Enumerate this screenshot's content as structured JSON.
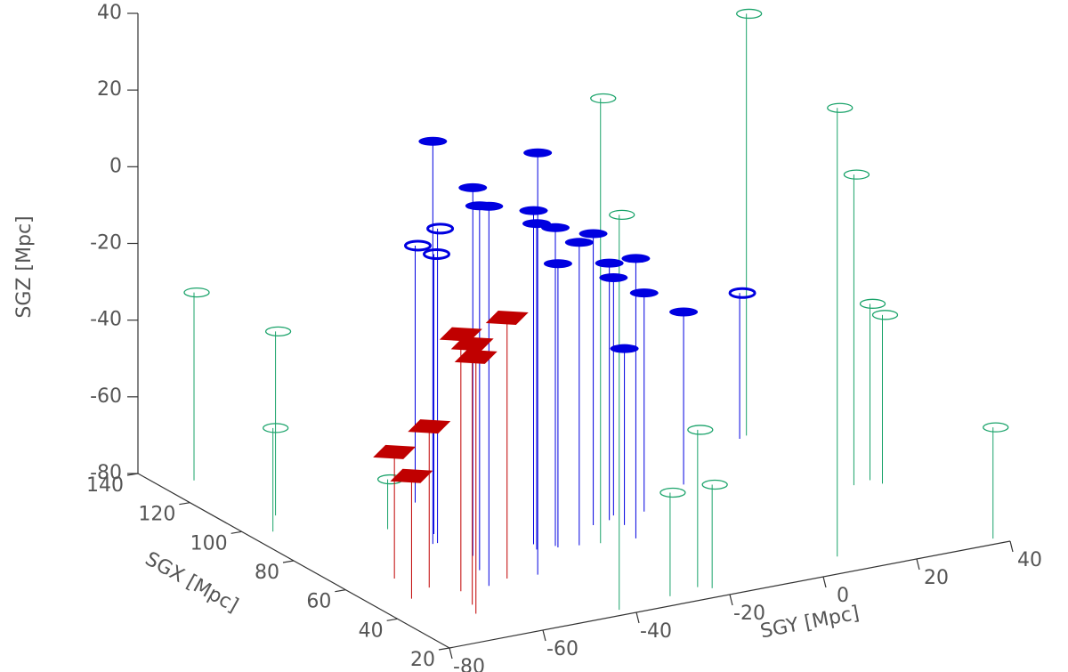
{
  "chart_data": {
    "type": "scatter3d",
    "xlabel": "SGX [Mpc]",
    "ylabel": "SGY [Mpc]",
    "zlabel": "SGZ [Mpc]",
    "xlim": [
      20,
      140
    ],
    "xticks": [
      20,
      40,
      60,
      80,
      100,
      120,
      140
    ],
    "ylim": [
      -80,
      40
    ],
    "yticks": [
      -80,
      -60,
      -40,
      -20,
      0,
      20,
      40
    ],
    "zlim": [
      -80,
      40
    ],
    "zticks": [
      -80,
      -60,
      -40,
      -20,
      0,
      20,
      40
    ],
    "drop_lines": true,
    "series": [
      {
        "color": "#1aa36a",
        "marker": "ring",
        "x": [
          131,
          105,
          97,
          87,
          59,
          23,
          25,
          27,
          25,
          100,
          29,
          64,
          65,
          62,
          23
        ],
        "y": [
          -73,
          -70,
          -75,
          -56,
          -26,
          -42,
          -30,
          -23,
          -21,
          28,
          8,
          31,
          35,
          36,
          38
        ],
        "z": [
          -31,
          -32,
          -53,
          -67,
          36,
          23,
          -53,
          -39,
          -53,
          30,
          37,
          1,
          -34,
          -36,
          -51
        ]
      },
      {
        "color": "#0000e0",
        "marker": "disk",
        "x": [
          75,
          65,
          57,
          48,
          49,
          65,
          62,
          62,
          61,
          60,
          69,
          70,
          72,
          58,
          71,
          66,
          81
        ],
        "y": [
          -53,
          -50,
          -53,
          -56,
          -45,
          -37,
          -38,
          -34,
          -34,
          -30,
          -22,
          -18,
          -16,
          -19,
          -10,
          -17,
          4
        ],
        "z": [
          25,
          16,
          15,
          19,
          30,
          7,
          5,
          3,
          -6,
          -1,
          -4,
          -13,
          -18,
          -7,
          -23,
          -34,
          -35
        ]
      },
      {
        "color": "#0000e0",
        "marker": "ring",
        "x": [
          98,
          75,
          80,
          99
        ],
        "y": [
          -44,
          -52,
          -50,
          26
        ],
        "z": [
          -13,
          2,
          -7,
          -42
        ]
      },
      {
        "color": "#c00000",
        "marker": "diamond",
        "x": [
          50,
          48,
          40,
          35,
          53,
          61,
          49
        ],
        "y": [
          -51,
          -62,
          -64,
          -66,
          -66,
          -69,
          -72
        ],
        "z": [
          -12,
          -13,
          -12,
          -13,
          -38,
          -47,
          -48
        ]
      }
    ]
  }
}
